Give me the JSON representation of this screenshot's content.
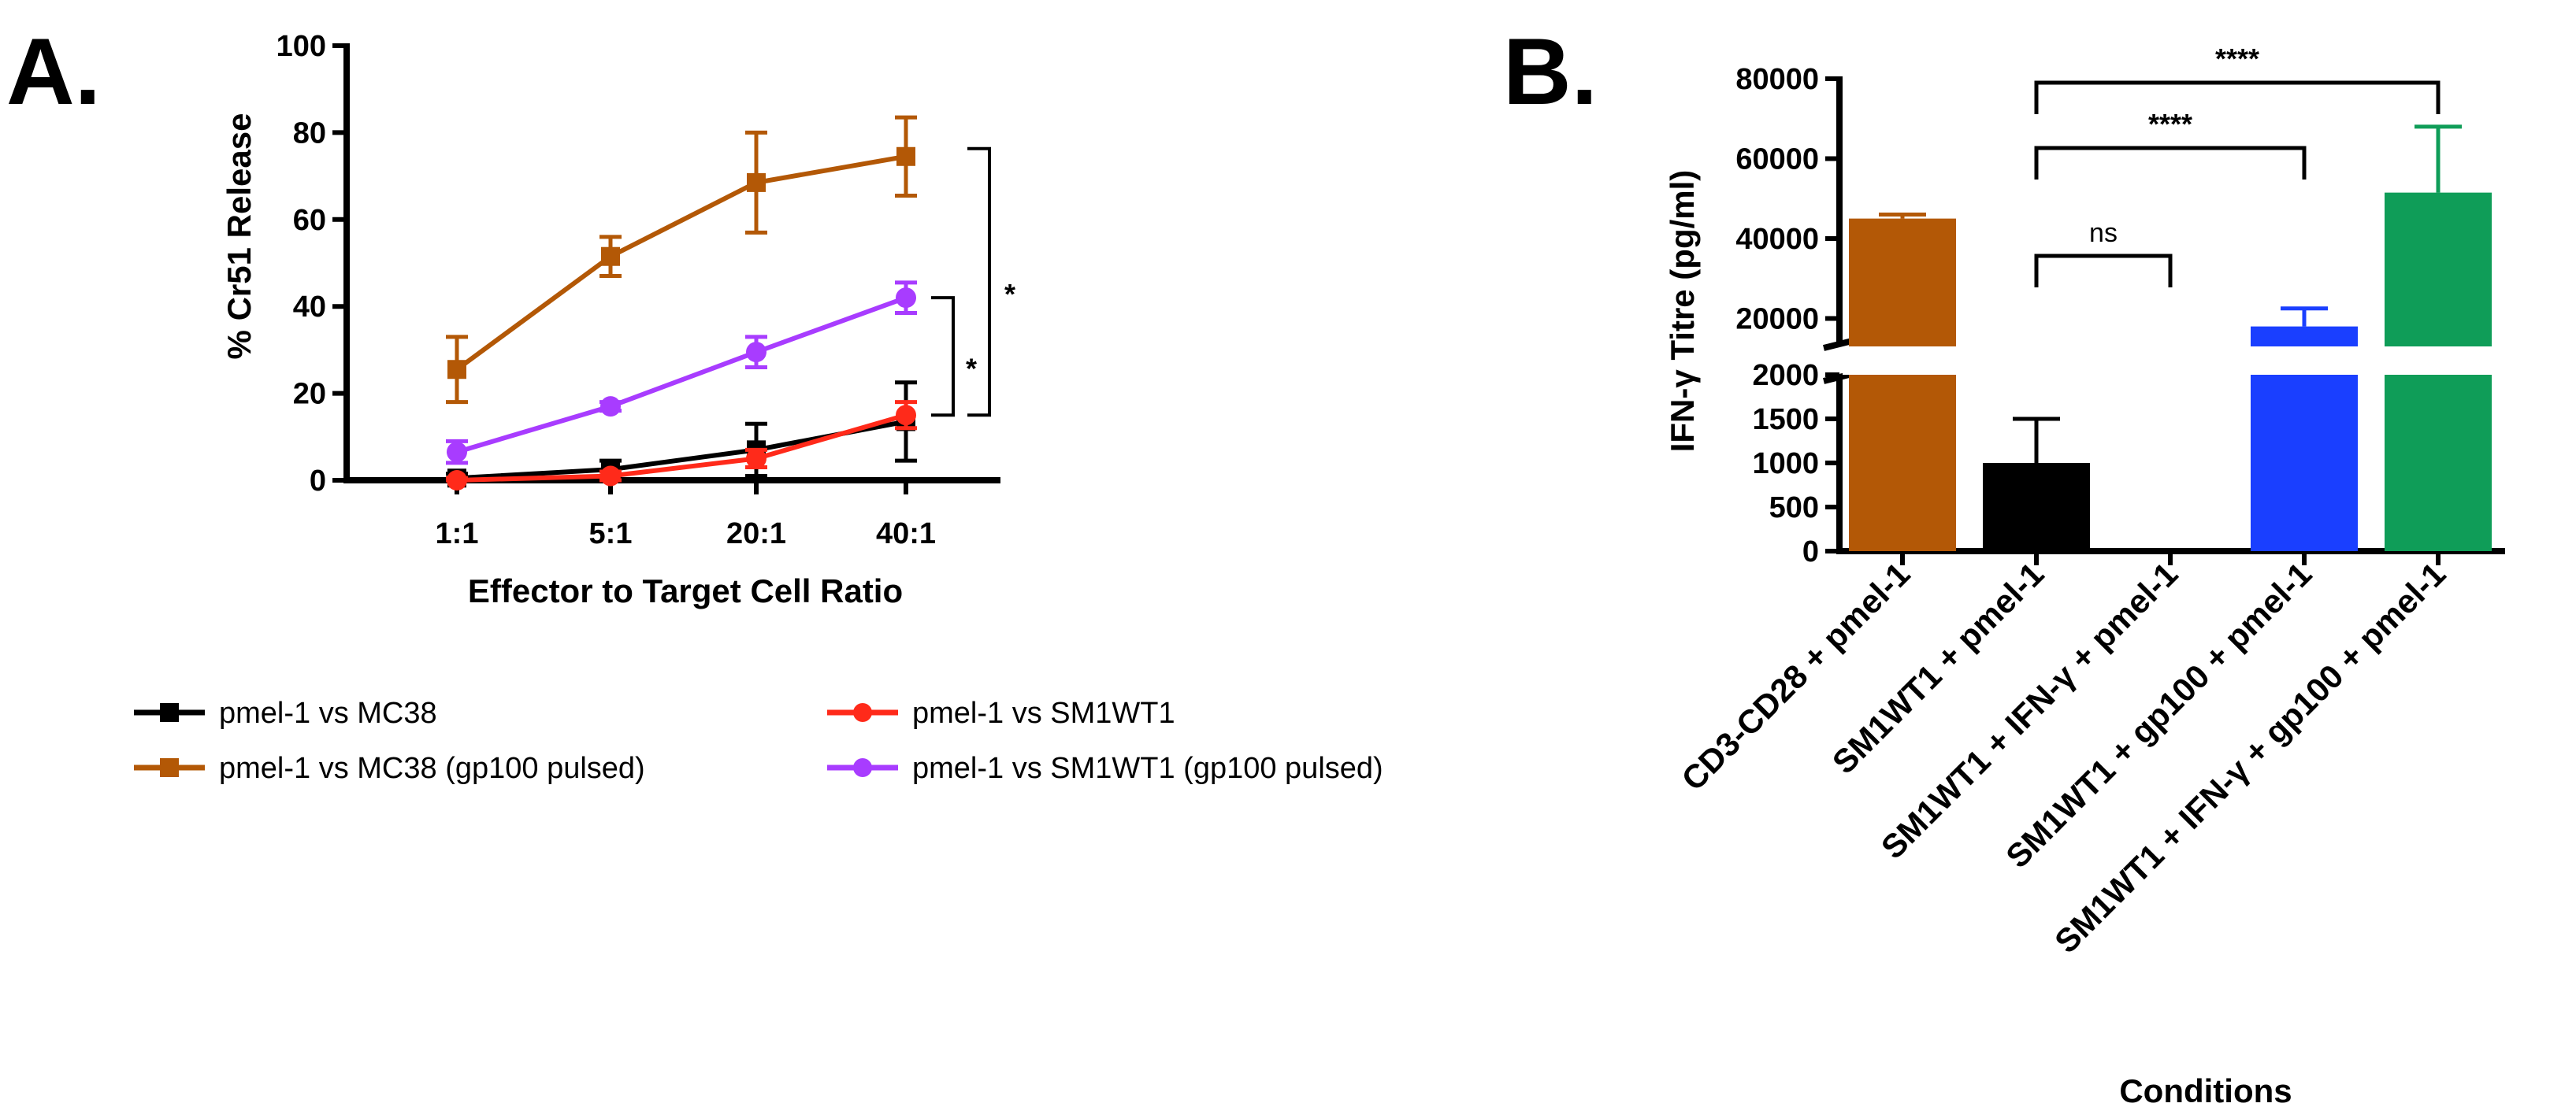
{
  "chart_data": [
    {
      "panel": "A.",
      "type": "line",
      "title": "",
      "xlabel": "Effector to Target Cell Ratio",
      "ylabel": "% Cr51 Release",
      "categories": [
        "1:1",
        "5:1",
        "20:1",
        "40:1"
      ],
      "ylim": [
        0,
        100
      ],
      "yticks": [
        "0",
        "20",
        "40",
        "60",
        "80",
        "100"
      ],
      "grid": false,
      "legend_position": "bottom",
      "series": [
        {
          "name": "pmel-1 vs MC38",
          "color": "#000000",
          "marker": "square",
          "values": [
            0.5,
            2.5,
            7,
            13.5
          ],
          "errors": [
            1,
            2,
            6,
            9
          ]
        },
        {
          "name": "pmel-1 vs SM1WT1",
          "color": "#ff2a1a",
          "marker": "circle",
          "values": [
            0,
            1,
            5,
            15
          ],
          "errors": [
            0.5,
            1,
            2,
            3
          ]
        },
        {
          "name": "pmel-1 vs MC38 (gp100 pulsed)",
          "color": "#b35806",
          "marker": "square",
          "values": [
            25.5,
            51.5,
            68.5,
            74.5
          ],
          "errors": [
            7.5,
            4.5,
            11.5,
            9
          ]
        },
        {
          "name": "pmel-1 vs SM1WT1 (gp100 pulsed)",
          "color": "#a83cff",
          "marker": "circle",
          "values": [
            6.5,
            17,
            29.5,
            42
          ],
          "errors": [
            2.5,
            1,
            3.5,
            3.5
          ]
        }
      ],
      "significance": [
        {
          "label": "*",
          "between": [
            "pmel-1 vs SM1WT1 (gp100 pulsed)",
            "pmel-1 vs SM1WT1"
          ]
        },
        {
          "label": "*",
          "between": [
            "pmel-1 vs MC38 (gp100 pulsed)",
            "pmel-1 vs MC38"
          ]
        }
      ]
    },
    {
      "panel": "B.",
      "type": "bar",
      "title": "",
      "xlabel": "Conditions",
      "ylabel": "IFN-γ Titre (pg/ml)",
      "categories": [
        "CD3-CD28 + pmel-1",
        "SM1WT1 + pmel-1",
        "SM1WT1 + IFN-γ + pmel-1",
        "SM1WT1 + gp100 + pmel-1",
        "SM1WT1 + IFN-γ  + gp100 + pmel-1"
      ],
      "values": [
        45000,
        1000,
        0,
        18000,
        51500
      ],
      "errors": [
        1000,
        500,
        0,
        4500,
        16500
      ],
      "colors": [
        "#b35806",
        "#000000",
        "#000000",
        "#1a3fff",
        "#0f9d58"
      ],
      "y_axis_broken": true,
      "ylim_lower": [
        0,
        2000
      ],
      "ylim_upper": [
        13000,
        80000
      ],
      "yticks_lower": [
        "0",
        "500",
        "1000",
        "1500",
        "2000"
      ],
      "yticks_upper": [
        "20000",
        "40000",
        "60000",
        "80000"
      ],
      "grid": false,
      "significance": [
        {
          "label": "ns",
          "from": "SM1WT1 + pmel-1",
          "to": "SM1WT1 + IFN-γ + pmel-1"
        },
        {
          "label": "****",
          "from": "SM1WT1 + pmel-1",
          "to": "SM1WT1 + gp100 + pmel-1"
        },
        {
          "label": "****",
          "from": "SM1WT1 + pmel-1",
          "to": "SM1WT1 + IFN-γ  + gp100 + pmel-1"
        }
      ]
    }
  ]
}
